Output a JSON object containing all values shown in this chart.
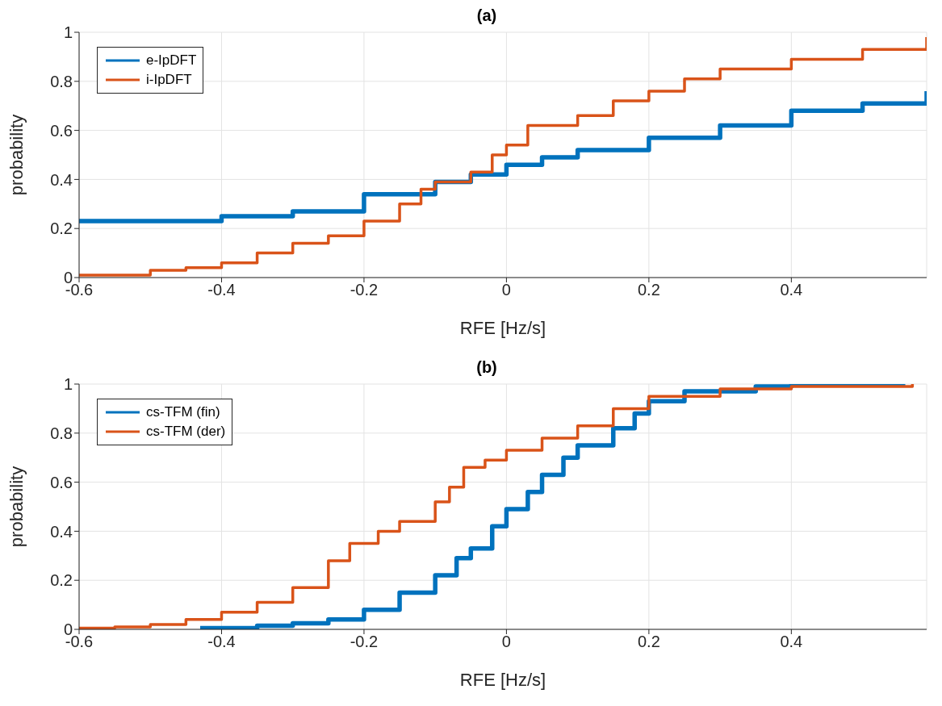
{
  "chart_data": [
    {
      "type": "step",
      "title": "(a)",
      "xlabel": "RFE [Hz/s]",
      "ylabel": "probability",
      "xlim": [
        -0.6,
        0.59
      ],
      "xticks": [
        -0.6,
        -0.4,
        -0.2,
        0,
        0.2,
        0.4
      ],
      "ylim": [
        0,
        1
      ],
      "yticks": [
        0,
        0.2,
        0.4,
        0.6,
        0.8,
        1
      ],
      "grid": true,
      "legend": "top left",
      "series": [
        {
          "name": "e-IpDFT",
          "color": "#0072bd",
          "x": [
            -0.6,
            -0.4,
            -0.3,
            -0.2,
            -0.1,
            -0.05,
            0,
            0.05,
            0.1,
            0.2,
            0.3,
            0.4,
            0.5,
            0.59
          ],
          "values": [
            0.23,
            0.25,
            0.27,
            0.34,
            0.39,
            0.42,
            0.46,
            0.49,
            0.52,
            0.57,
            0.62,
            0.68,
            0.71,
            0.76
          ]
        },
        {
          "name": "i-IpDFT",
          "color": "#d95319",
          "x": [
            -0.6,
            -0.55,
            -0.5,
            -0.45,
            -0.4,
            -0.35,
            -0.3,
            -0.25,
            -0.2,
            -0.15,
            -0.12,
            -0.1,
            -0.05,
            -0.02,
            0,
            0.03,
            0.1,
            0.15,
            0.2,
            0.25,
            0.3,
            0.4,
            0.5,
            0.59
          ],
          "values": [
            0.01,
            0.01,
            0.03,
            0.04,
            0.06,
            0.1,
            0.14,
            0.17,
            0.23,
            0.3,
            0.36,
            0.39,
            0.43,
            0.5,
            0.54,
            0.62,
            0.66,
            0.72,
            0.76,
            0.81,
            0.85,
            0.89,
            0.93,
            0.98
          ]
        }
      ]
    },
    {
      "type": "step",
      "title": "(b)",
      "xlabel": "RFE [Hz/s]",
      "ylabel": "probability",
      "xlim": [
        -0.6,
        0.59
      ],
      "xticks": [
        -0.6,
        -0.4,
        -0.2,
        0,
        0.2,
        0.4
      ],
      "ylim": [
        0,
        1
      ],
      "yticks": [
        0,
        0.2,
        0.4,
        0.6,
        0.8,
        1
      ],
      "grid": true,
      "legend": "top left",
      "series": [
        {
          "name": "cs-TFM (fin)",
          "color": "#0072bd",
          "x": [
            -0.43,
            -0.35,
            -0.3,
            -0.25,
            -0.2,
            -0.15,
            -0.1,
            -0.07,
            -0.05,
            -0.02,
            0,
            0.03,
            0.05,
            0.08,
            0.1,
            0.15,
            0.18,
            0.2,
            0.25,
            0.35,
            0.4,
            0.56
          ],
          "values": [
            0.005,
            0.015,
            0.025,
            0.04,
            0.08,
            0.15,
            0.22,
            0.29,
            0.33,
            0.42,
            0.49,
            0.56,
            0.63,
            0.7,
            0.75,
            0.82,
            0.88,
            0.93,
            0.97,
            0.99,
            1,
            1
          ]
        },
        {
          "name": "cs-TFM (der)",
          "color": "#d95319",
          "x": [
            -0.6,
            -0.55,
            -0.5,
            -0.45,
            -0.4,
            -0.35,
            -0.3,
            -0.25,
            -0.22,
            -0.18,
            -0.15,
            -0.1,
            -0.08,
            -0.06,
            -0.03,
            0,
            0.05,
            0.1,
            0.15,
            0.2,
            0.3,
            0.4,
            0.57
          ],
          "values": [
            0.005,
            0.01,
            0.02,
            0.04,
            0.07,
            0.11,
            0.17,
            0.28,
            0.35,
            0.4,
            0.44,
            0.52,
            0.58,
            0.66,
            0.69,
            0.73,
            0.78,
            0.83,
            0.9,
            0.95,
            0.98,
            0.99,
            1
          ]
        }
      ]
    }
  ]
}
